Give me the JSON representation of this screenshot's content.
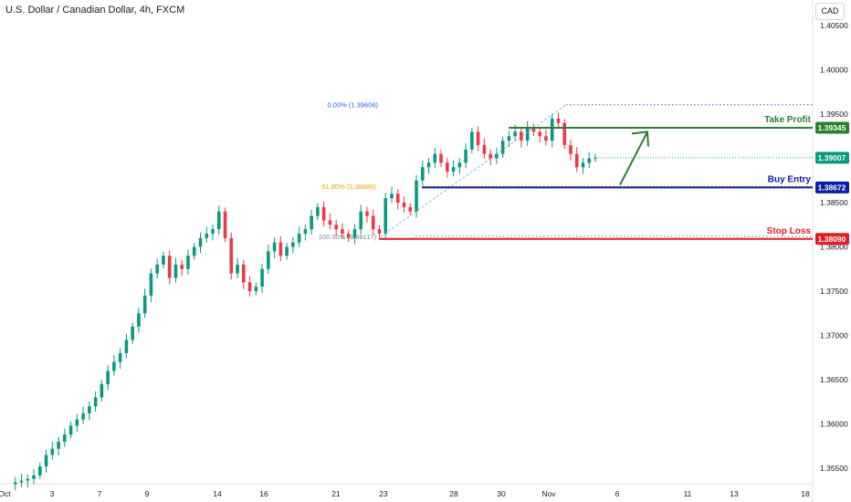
{
  "header": {
    "symbol_title": "U.S. Dollar / Canadian Dollar, 4h, FXCM",
    "currency": "CAD"
  },
  "colors": {
    "up": "#089981",
    "down": "#f23645",
    "take_profit": "#2e7d32",
    "buy_entry": "#0d1ea3",
    "stop_loss": "#e01f24",
    "fib": "#2962ff",
    "fib_618": "#e8a600"
  },
  "chart_data": {
    "type": "candlestick",
    "timeframe": "4h",
    "ylim": [
      1.3535,
      1.407
    ],
    "y_ticks": [
      "1.40500",
      "1.40000",
      "1.39500",
      "1.39000",
      "1.38500",
      "1.38000",
      "1.37500",
      "1.37000",
      "1.36500",
      "1.36000",
      "1.35500"
    ],
    "x_ticks": [
      "Oct",
      "3",
      "7",
      "9",
      "14",
      "16",
      "21",
      "23",
      "28",
      "30",
      "Nov",
      "6",
      "11",
      "13",
      "18"
    ],
    "close_path": [
      1.3532,
      1.3534,
      1.3536,
      1.3538,
      1.3542,
      1.3552,
      1.3565,
      1.3572,
      1.358,
      1.3588,
      1.3598,
      1.3605,
      1.3612,
      1.362,
      1.363,
      1.3645,
      1.366,
      1.367,
      1.368,
      1.3695,
      1.371,
      1.3725,
      1.3745,
      1.377,
      1.378,
      1.379,
      1.3765,
      1.378,
      1.3775,
      1.379,
      1.38,
      1.381,
      1.3815,
      1.382,
      1.384,
      1.381,
      1.377,
      1.378,
      1.376,
      1.375,
      1.3755,
      1.3775,
      1.3795,
      1.3805,
      1.379,
      1.38,
      1.3805,
      1.3815,
      1.382,
      1.3835,
      1.3845,
      1.383,
      1.3825,
      1.382,
      1.3815,
      1.381,
      1.382,
      1.384,
      1.3835,
      1.382,
      1.3815,
      1.3855,
      1.386,
      1.385,
      1.3845,
      1.384,
      1.3875,
      1.389,
      1.3895,
      1.3905,
      1.3895,
      1.3885,
      1.389,
      1.3895,
      1.391,
      1.393,
      1.3915,
      1.3905,
      1.39,
      1.3905,
      1.392,
      1.3925,
      1.393,
      1.392,
      1.3935,
      1.393,
      1.3925,
      1.392,
      1.3945,
      1.394,
      1.3915,
      1.3905,
      1.389,
      1.3895,
      1.39,
      1.39007
    ],
    "levels": [
      {
        "name": "Take Profit",
        "label": "Take Profit",
        "price": 1.39345,
        "price_label": "1.39345"
      },
      {
        "name": "Buy Entry",
        "label": "Buy Entry",
        "price": 1.38672,
        "price_label": "1.38672"
      },
      {
        "name": "Stop Loss",
        "label": "Stop Loss",
        "price": 1.3809,
        "price_label": "1.38090"
      }
    ],
    "current_price": {
      "price": 1.39007,
      "price_label": "1.39007"
    },
    "fibonacci": [
      {
        "label": "0.00% (1.39606)",
        "price": 1.39606
      },
      {
        "label": "61.80% (1.38686)",
        "price": 1.38686
      },
      {
        "label": "100.00% (1.38117)",
        "price": 1.38117
      }
    ],
    "arrow": {
      "from_price": 1.387,
      "to_price": 1.393
    }
  }
}
